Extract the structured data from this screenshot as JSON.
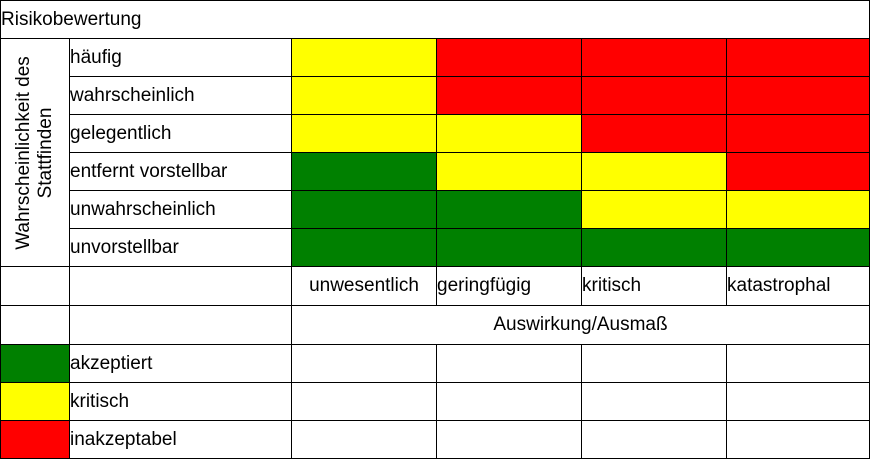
{
  "title": "Risikobewertung",
  "y_axis_label_line1": "Wahrscheinlichkeit des",
  "y_axis_label_line2": "Stattfinden",
  "rows": [
    {
      "label": "häufig",
      "cells": [
        "yellow",
        "red",
        "red",
        "red"
      ]
    },
    {
      "label": "wahrscheinlich",
      "cells": [
        "yellow",
        "red",
        "red",
        "red"
      ]
    },
    {
      "label": "gelegentlich",
      "cells": [
        "yellow",
        "yellow",
        "red",
        "red"
      ]
    },
    {
      "label": "entfernt vorstellbar",
      "cells": [
        "green",
        "yellow",
        "yellow",
        "red"
      ]
    },
    {
      "label": "unwahrscheinlich",
      "cells": [
        "green",
        "green",
        "yellow",
        "yellow"
      ]
    },
    {
      "label": "unvorstellbar",
      "cells": [
        "green",
        "green",
        "green",
        "green"
      ]
    }
  ],
  "columns": [
    "unwesentlich",
    "geringfügig",
    "kritisch",
    "katastrophal"
  ],
  "x_axis_label": "Auswirkung/Ausmaß",
  "legend": [
    {
      "color": "green",
      "label": "akzeptiert"
    },
    {
      "color": "yellow",
      "label": "kritisch"
    },
    {
      "color": "red",
      "label": "inakzeptabel"
    }
  ],
  "colors": {
    "green": "#008000",
    "yellow": "#ffff00",
    "red": "#ff0000"
  }
}
